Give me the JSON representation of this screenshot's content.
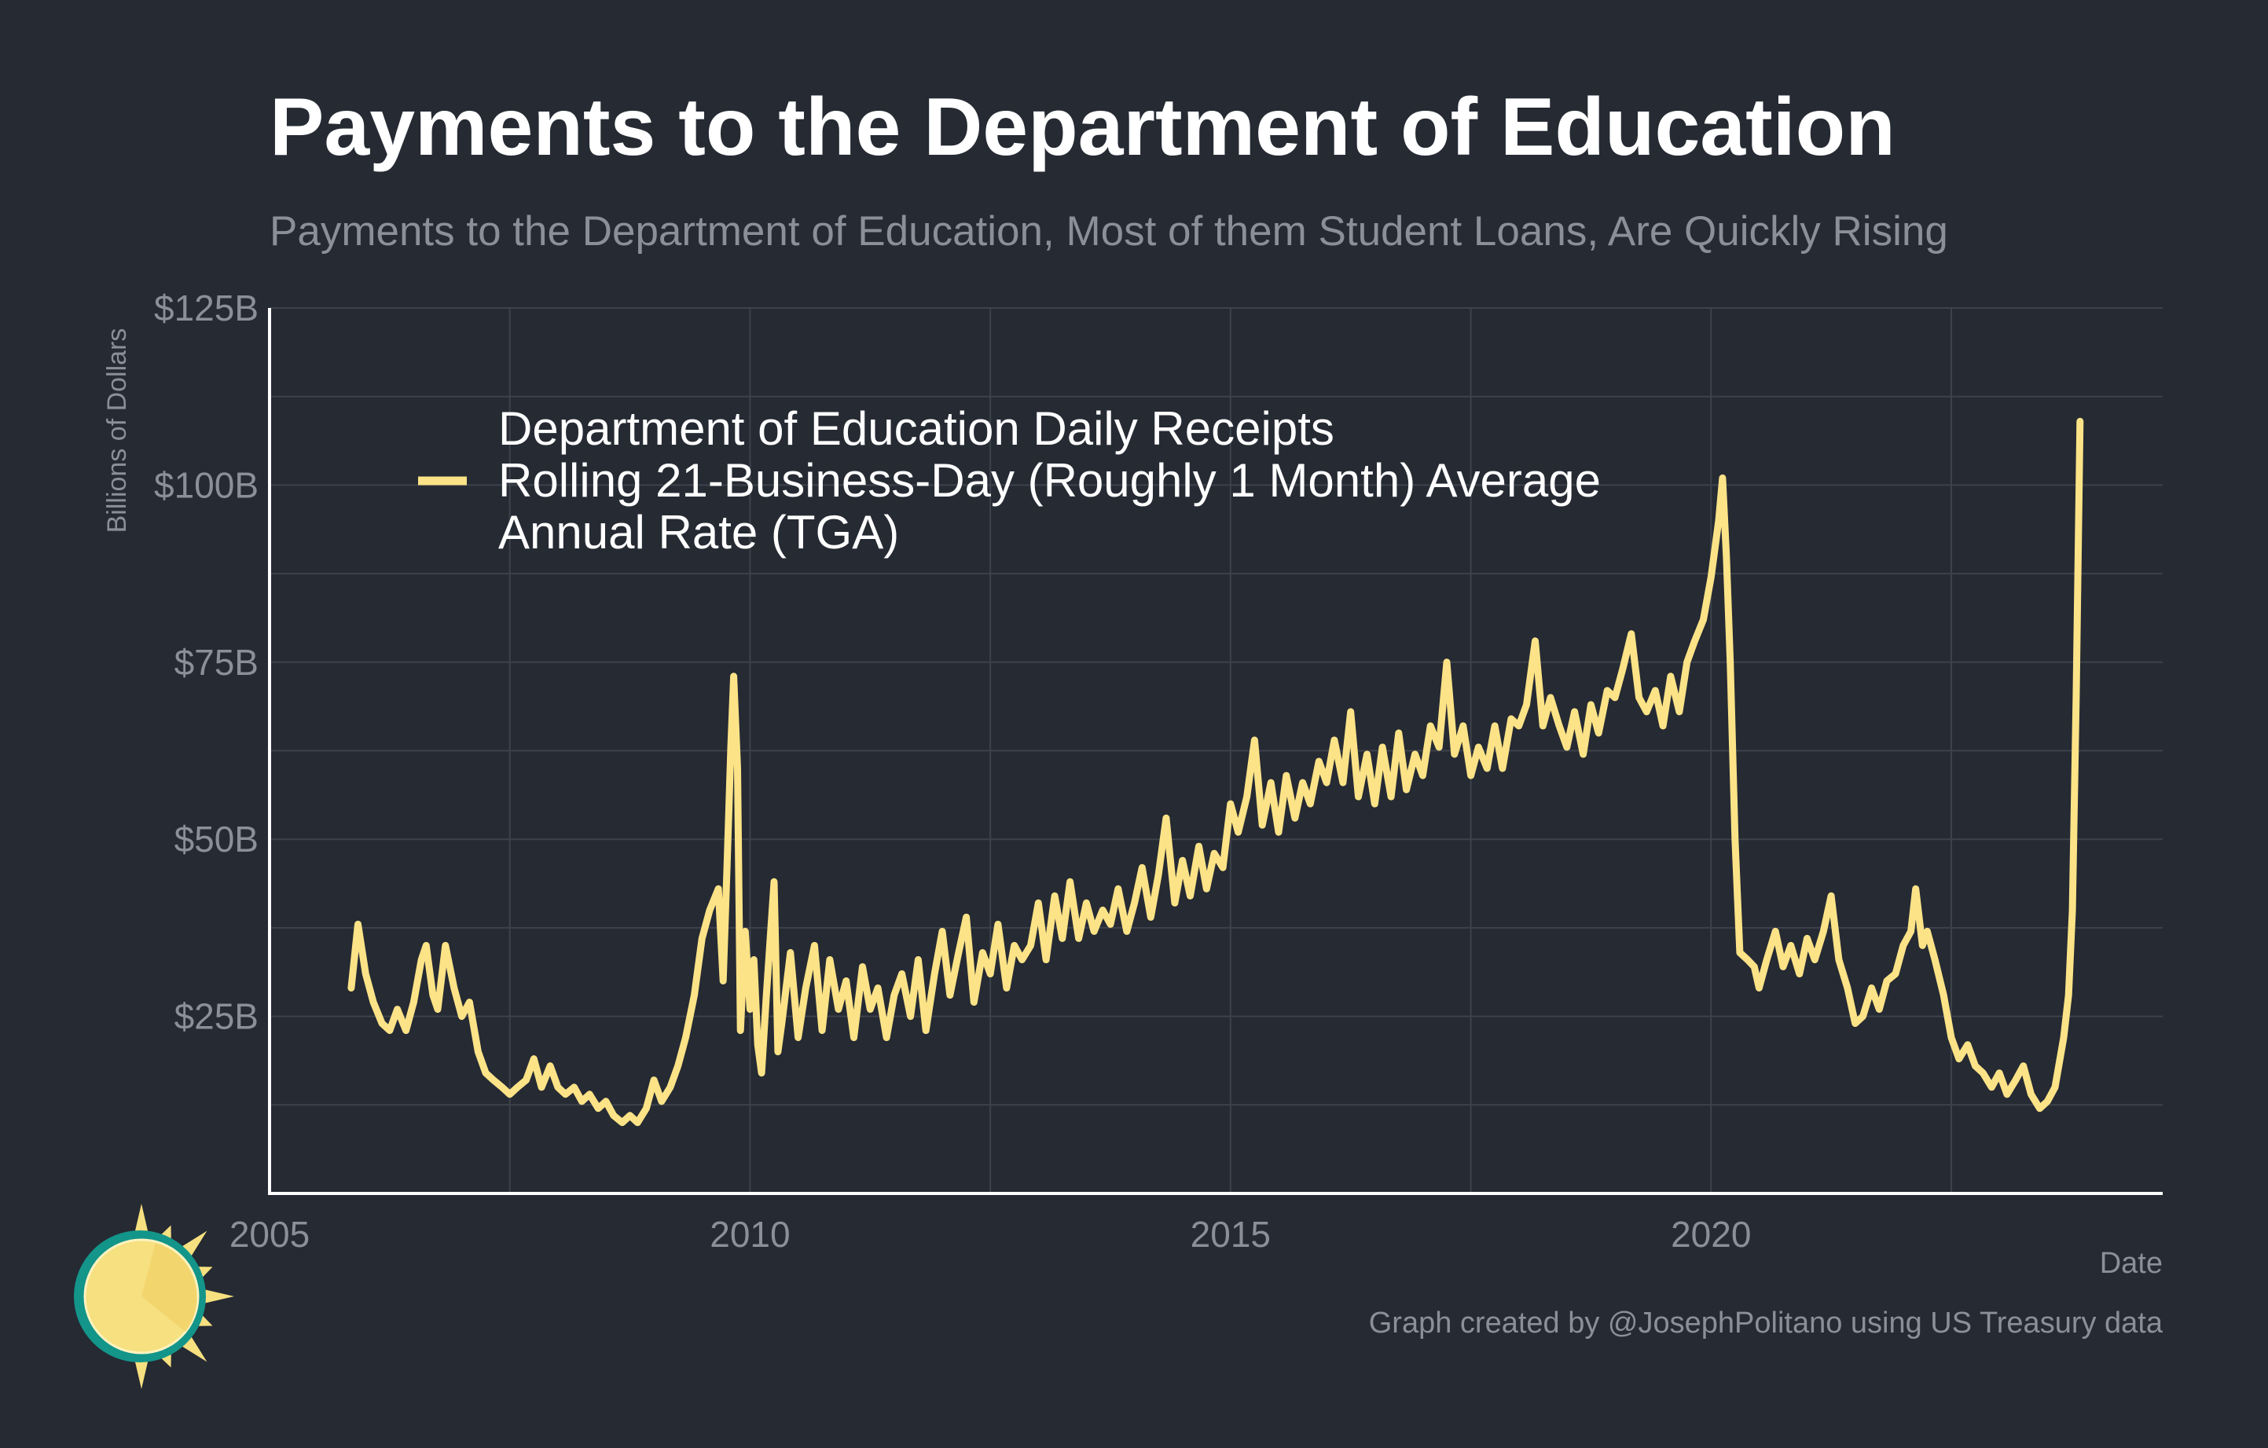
{
  "header": {
    "title": "Payments to the Department of Education",
    "subtitle": "Payments to the Department of Education, Most of them Student Loans, Are Quickly Rising"
  },
  "caption": "Graph created by @JosephPolitano using US Treasury data",
  "colors": {
    "background": "#252a33",
    "line": "#fce387",
    "grid": "#3d424b",
    "axis": "#ffffff",
    "tick_text": "#8a8f98",
    "logo_teal": "#13958a",
    "logo_yellow": "#f6e07f"
  },
  "chart_data": {
    "type": "line",
    "title": "Payments to the Department of Education",
    "subtitle": "Payments to the Department of Education, Most of them Student Loans, Are Quickly Rising",
    "xlabel": "Date",
    "ylabel": "Billions of Dollars",
    "xlim": [
      2005.0,
      2024.7
    ],
    "ylim": [
      0,
      125
    ],
    "x_ticks": [
      2005,
      2010,
      2015,
      2020
    ],
    "x_tick_labels": [
      "2005",
      "2010",
      "2015",
      "2020"
    ],
    "y_ticks": [
      25,
      50,
      75,
      100,
      125
    ],
    "y_tick_labels": [
      "$25B",
      "$50B",
      "$75B",
      "$100B",
      "$125B"
    ],
    "grid": true,
    "legend_position": "top-left",
    "series": [
      {
        "name": "Department of Education Daily Receipts\nRolling 21-Business-Day (Roughly 1 Month) Average\nAnnual Rate (TGA)",
        "color": "#fce387",
        "points": [
          [
            2005.85,
            29
          ],
          [
            2005.92,
            38
          ],
          [
            2006.0,
            31
          ],
          [
            2006.08,
            27
          ],
          [
            2006.17,
            24
          ],
          [
            2006.25,
            23
          ],
          [
            2006.33,
            26
          ],
          [
            2006.42,
            23
          ],
          [
            2006.5,
            27
          ],
          [
            2006.58,
            33
          ],
          [
            2006.63,
            35
          ],
          [
            2006.7,
            28
          ],
          [
            2006.75,
            26
          ],
          [
            2006.83,
            35
          ],
          [
            2006.92,
            29
          ],
          [
            2007.0,
            25
          ],
          [
            2007.08,
            27
          ],
          [
            2007.17,
            20
          ],
          [
            2007.25,
            17
          ],
          [
            2007.33,
            16
          ],
          [
            2007.42,
            15
          ],
          [
            2007.5,
            14
          ],
          [
            2007.58,
            15
          ],
          [
            2007.67,
            16
          ],
          [
            2007.75,
            19
          ],
          [
            2007.83,
            15
          ],
          [
            2007.92,
            18
          ],
          [
            2008.0,
            15
          ],
          [
            2008.08,
            14
          ],
          [
            2008.17,
            15
          ],
          [
            2008.25,
            13
          ],
          [
            2008.33,
            14
          ],
          [
            2008.42,
            12
          ],
          [
            2008.5,
            13
          ],
          [
            2008.58,
            11
          ],
          [
            2008.67,
            10
          ],
          [
            2008.75,
            11
          ],
          [
            2008.83,
            10
          ],
          [
            2008.92,
            12
          ],
          [
            2009.0,
            16
          ],
          [
            2009.08,
            13
          ],
          [
            2009.17,
            15
          ],
          [
            2009.25,
            18
          ],
          [
            2009.33,
            22
          ],
          [
            2009.42,
            28
          ],
          [
            2009.5,
            36
          ],
          [
            2009.58,
            40
          ],
          [
            2009.67,
            43
          ],
          [
            2009.72,
            30
          ],
          [
            2009.76,
            46
          ],
          [
            2009.8,
            63
          ],
          [
            2009.83,
            73
          ],
          [
            2009.87,
            60
          ],
          [
            2009.9,
            23
          ],
          [
            2009.95,
            37
          ],
          [
            2010.0,
            26
          ],
          [
            2010.04,
            33
          ],
          [
            2010.08,
            21
          ],
          [
            2010.12,
            17
          ],
          [
            2010.17,
            28
          ],
          [
            2010.25,
            44
          ],
          [
            2010.29,
            20
          ],
          [
            2010.33,
            24
          ],
          [
            2010.42,
            34
          ],
          [
            2010.5,
            22
          ],
          [
            2010.58,
            29
          ],
          [
            2010.67,
            35
          ],
          [
            2010.75,
            23
          ],
          [
            2010.83,
            33
          ],
          [
            2010.92,
            26
          ],
          [
            2011.0,
            30
          ],
          [
            2011.08,
            22
          ],
          [
            2011.17,
            32
          ],
          [
            2011.25,
            26
          ],
          [
            2011.33,
            29
          ],
          [
            2011.42,
            22
          ],
          [
            2011.5,
            28
          ],
          [
            2011.58,
            31
          ],
          [
            2011.67,
            25
          ],
          [
            2011.75,
            33
          ],
          [
            2011.83,
            23
          ],
          [
            2011.92,
            31
          ],
          [
            2012.0,
            37
          ],
          [
            2012.08,
            28
          ],
          [
            2012.17,
            34
          ],
          [
            2012.25,
            39
          ],
          [
            2012.33,
            27
          ],
          [
            2012.42,
            34
          ],
          [
            2012.5,
            31
          ],
          [
            2012.58,
            38
          ],
          [
            2012.67,
            29
          ],
          [
            2012.75,
            35
          ],
          [
            2012.83,
            33
          ],
          [
            2012.92,
            35
          ],
          [
            2013.0,
            41
          ],
          [
            2013.08,
            33
          ],
          [
            2013.17,
            42
          ],
          [
            2013.25,
            36
          ],
          [
            2013.33,
            44
          ],
          [
            2013.42,
            36
          ],
          [
            2013.5,
            41
          ],
          [
            2013.58,
            37
          ],
          [
            2013.67,
            40
          ],
          [
            2013.75,
            38
          ],
          [
            2013.83,
            43
          ],
          [
            2013.92,
            37
          ],
          [
            2014.0,
            41
          ],
          [
            2014.08,
            46
          ],
          [
            2014.17,
            39
          ],
          [
            2014.25,
            45
          ],
          [
            2014.33,
            53
          ],
          [
            2014.42,
            41
          ],
          [
            2014.5,
            47
          ],
          [
            2014.58,
            42
          ],
          [
            2014.67,
            49
          ],
          [
            2014.75,
            43
          ],
          [
            2014.83,
            48
          ],
          [
            2014.92,
            46
          ],
          [
            2015.0,
            55
          ],
          [
            2015.08,
            51
          ],
          [
            2015.17,
            56
          ],
          [
            2015.25,
            64
          ],
          [
            2015.33,
            52
          ],
          [
            2015.42,
            58
          ],
          [
            2015.5,
            51
          ],
          [
            2015.58,
            59
          ],
          [
            2015.67,
            53
          ],
          [
            2015.75,
            58
          ],
          [
            2015.83,
            55
          ],
          [
            2015.92,
            61
          ],
          [
            2016.0,
            58
          ],
          [
            2016.08,
            64
          ],
          [
            2016.17,
            58
          ],
          [
            2016.25,
            68
          ],
          [
            2016.33,
            56
          ],
          [
            2016.42,
            62
          ],
          [
            2016.5,
            55
          ],
          [
            2016.58,
            63
          ],
          [
            2016.67,
            56
          ],
          [
            2016.75,
            65
          ],
          [
            2016.83,
            57
          ],
          [
            2016.92,
            62
          ],
          [
            2017.0,
            59
          ],
          [
            2017.08,
            66
          ],
          [
            2017.17,
            63
          ],
          [
            2017.25,
            75
          ],
          [
            2017.33,
            62
          ],
          [
            2017.42,
            66
          ],
          [
            2017.5,
            59
          ],
          [
            2017.58,
            63
          ],
          [
            2017.67,
            60
          ],
          [
            2017.75,
            66
          ],
          [
            2017.83,
            60
          ],
          [
            2017.92,
            67
          ],
          [
            2018.0,
            66
          ],
          [
            2018.08,
            69
          ],
          [
            2018.17,
            78
          ],
          [
            2018.25,
            66
          ],
          [
            2018.33,
            70
          ],
          [
            2018.42,
            66
          ],
          [
            2018.5,
            63
          ],
          [
            2018.58,
            68
          ],
          [
            2018.67,
            62
          ],
          [
            2018.75,
            69
          ],
          [
            2018.83,
            65
          ],
          [
            2018.92,
            71
          ],
          [
            2019.0,
            70
          ],
          [
            2019.08,
            74
          ],
          [
            2019.17,
            79
          ],
          [
            2019.25,
            70
          ],
          [
            2019.33,
            68
          ],
          [
            2019.42,
            71
          ],
          [
            2019.5,
            66
          ],
          [
            2019.58,
            73
          ],
          [
            2019.67,
            68
          ],
          [
            2019.75,
            75
          ],
          [
            2019.83,
            78
          ],
          [
            2019.92,
            81
          ],
          [
            2020.0,
            87
          ],
          [
            2020.08,
            95
          ],
          [
            2020.12,
            101
          ],
          [
            2020.16,
            90
          ],
          [
            2020.2,
            75
          ],
          [
            2020.25,
            50
          ],
          [
            2020.3,
            34
          ],
          [
            2020.38,
            33
          ],
          [
            2020.45,
            32
          ],
          [
            2020.5,
            29
          ],
          [
            2020.58,
            33
          ],
          [
            2020.67,
            37
          ],
          [
            2020.75,
            32
          ],
          [
            2020.83,
            35
          ],
          [
            2020.92,
            31
          ],
          [
            2021.0,
            36
          ],
          [
            2021.08,
            33
          ],
          [
            2021.17,
            37
          ],
          [
            2021.25,
            42
          ],
          [
            2021.33,
            33
          ],
          [
            2021.42,
            29
          ],
          [
            2021.5,
            24
          ],
          [
            2021.58,
            25
          ],
          [
            2021.67,
            29
          ],
          [
            2021.75,
            26
          ],
          [
            2021.83,
            30
          ],
          [
            2021.92,
            31
          ],
          [
            2022.0,
            35
          ],
          [
            2022.08,
            37
          ],
          [
            2022.13,
            43
          ],
          [
            2022.2,
            35
          ],
          [
            2022.25,
            37
          ],
          [
            2022.33,
            33
          ],
          [
            2022.42,
            28
          ],
          [
            2022.5,
            22
          ],
          [
            2022.58,
            19
          ],
          [
            2022.67,
            21
          ],
          [
            2022.75,
            18
          ],
          [
            2022.83,
            17
          ],
          [
            2022.92,
            15
          ],
          [
            2023.0,
            17
          ],
          [
            2023.08,
            14
          ],
          [
            2023.17,
            16
          ],
          [
            2023.25,
            18
          ],
          [
            2023.33,
            14
          ],
          [
            2023.42,
            12
          ],
          [
            2023.5,
            13
          ],
          [
            2023.58,
            15
          ],
          [
            2023.67,
            22
          ],
          [
            2023.72,
            28
          ],
          [
            2023.76,
            40
          ],
          [
            2023.8,
            70
          ],
          [
            2023.84,
            109
          ]
        ]
      }
    ]
  }
}
